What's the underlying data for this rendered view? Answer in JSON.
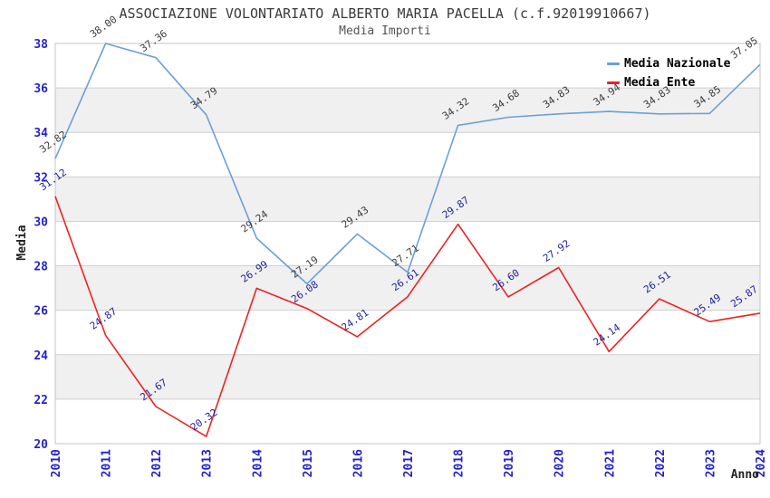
{
  "chart_data": {
    "type": "line",
    "title": "ASSOCIAZIONE VOLONTARIATO ALBERTO MARIA PACELLA (c.f.92019910667)",
    "subtitle": "Media Importi",
    "xlabel": "Anno",
    "ylabel": "Media",
    "x": [
      "2010",
      "2011",
      "2012",
      "2013",
      "2014",
      "2015",
      "2016",
      "2017",
      "2018",
      "2019",
      "2020",
      "2021",
      "2022",
      "2023",
      "2024"
    ],
    "series": [
      {
        "name": "Media Nazionale",
        "color": "#6ba0d8",
        "label_color": "#3c3c3c",
        "values": [
          32.82,
          38.0,
          37.36,
          34.79,
          29.24,
          27.19,
          29.43,
          27.71,
          34.32,
          34.68,
          34.83,
          34.94,
          34.83,
          34.85,
          37.05
        ]
      },
      {
        "name": "Media Ente",
        "color": "#ee2222",
        "label_color": "#1f1f9a",
        "values": [
          31.12,
          24.87,
          21.67,
          20.32,
          26.99,
          26.08,
          24.81,
          26.61,
          29.87,
          26.6,
          27.92,
          24.14,
          26.51,
          25.49,
          25.87
        ]
      }
    ],
    "ylim": [
      20,
      38
    ],
    "ytick_step": 2,
    "yticks": [
      20,
      22,
      24,
      26,
      28,
      30,
      32,
      34,
      36,
      38
    ],
    "legend_position": "top-right",
    "grid": "horizontal",
    "background_bands": {
      "fill": "#f0f0f0",
      "interval": 2
    },
    "colors": {
      "tick_label": "#2323cb",
      "grid_line": "#cfcfcf",
      "plot_border": "#c6c6c6",
      "title": "#3a3a3a",
      "subtitle": "#555555",
      "axis_title": "#222222"
    }
  }
}
